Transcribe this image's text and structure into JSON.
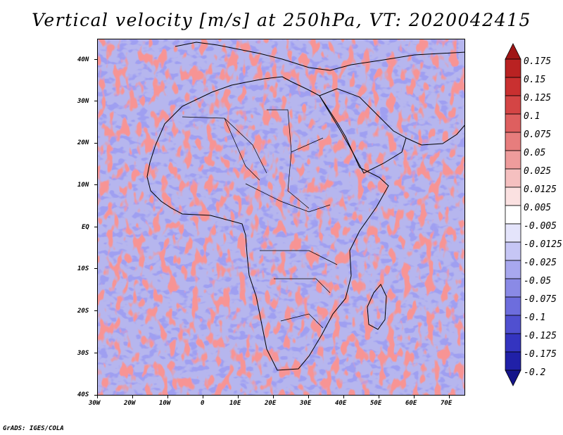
{
  "title": "Vertical velocity [m/s] at 250hPa, VT: 2020042415",
  "credit": "GrADS: IGES/COLA",
  "map": {
    "lon_range": [
      -30,
      75
    ],
    "lat_range": [
      -40,
      45
    ],
    "lat_labels": [
      "40N",
      "30N",
      "20N",
      "10N",
      "EQ",
      "10S",
      "20S",
      "30S",
      "40S"
    ],
    "lon_labels": [
      "30W",
      "20W",
      "10W",
      "0",
      "10E",
      "20E",
      "30E",
      "40E",
      "50E",
      "60E",
      "70E"
    ],
    "region": "Africa"
  },
  "colorbar": {
    "labels": [
      "0.175",
      "0.15",
      "0.125",
      "0.1",
      "0.075",
      "0.05",
      "0.025",
      "0.0125",
      "0.005",
      "-0.005",
      "-0.0125",
      "-0.025",
      "-0.05",
      "-0.075",
      "-0.1",
      "-0.125",
      "-0.175",
      "-0.2"
    ],
    "colors": [
      "#a01616",
      "#b92222",
      "#c93030",
      "#d44545",
      "#de5f5f",
      "#e77d7d",
      "#ee9c9c",
      "#f5c0c0",
      "#fbe1e1",
      "#ffffff",
      "#e4e4fb",
      "#c6c6f5",
      "#a8a8ee",
      "#8a8ae6",
      "#6d6ddd",
      "#5050d0",
      "#3434c0",
      "#2020a8",
      "#14148a"
    ]
  }
}
